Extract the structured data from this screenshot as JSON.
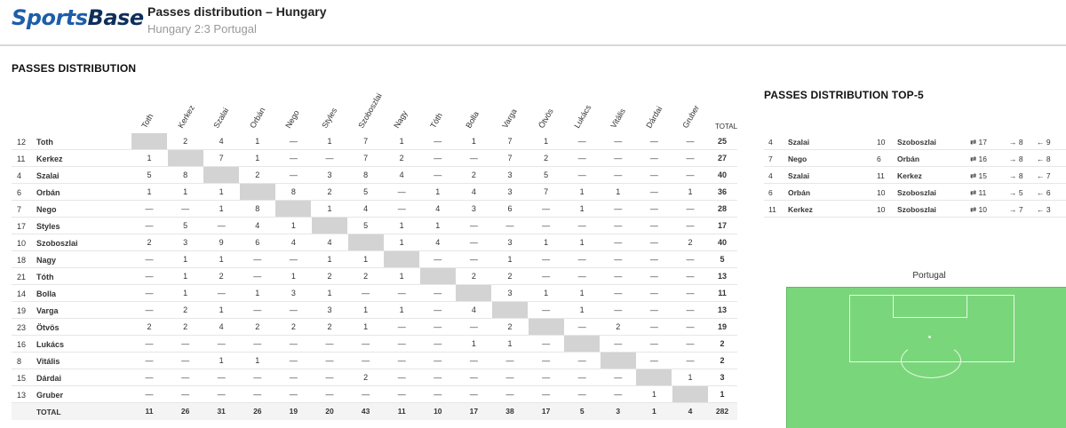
{
  "header": {
    "logo_part1": "Sports",
    "logo_part2": "Base",
    "title": "Passes distribution – Hungary",
    "subtitle": "Hungary 2:3 Portugal"
  },
  "matrix": {
    "title": "PASSES DISTRIBUTION",
    "columns": [
      "Toth",
      "Kerkez",
      "Szalai",
      "Orbán",
      "Nego",
      "Styles",
      "Szoboszlai",
      "Nagy",
      "Tóth",
      "Bolla",
      "Varga",
      "Ötvös",
      "Lukács",
      "Vitális",
      "Dárdai",
      "Gruber"
    ],
    "total_label": "TOTAL",
    "rows": [
      {
        "num": "12",
        "name": "Toth",
        "cells": [
          "",
          "2",
          "4",
          "1",
          "—",
          "1",
          "7",
          "1",
          "—",
          "1",
          "7",
          "1",
          "—",
          "—",
          "—",
          "—"
        ],
        "total": "25"
      },
      {
        "num": "11",
        "name": "Kerkez",
        "cells": [
          "1",
          "",
          "7",
          "1",
          "—",
          "—",
          "7",
          "2",
          "—",
          "—",
          "7",
          "2",
          "—",
          "—",
          "—",
          "—"
        ],
        "total": "27"
      },
      {
        "num": "4",
        "name": "Szalai",
        "cells": [
          "5",
          "8",
          "",
          "2",
          "—",
          "3",
          "8",
          "4",
          "—",
          "2",
          "3",
          "5",
          "—",
          "—",
          "—",
          "—"
        ],
        "total": "40"
      },
      {
        "num": "6",
        "name": "Orbán",
        "cells": [
          "1",
          "1",
          "1",
          "",
          "8",
          "2",
          "5",
          "—",
          "1",
          "4",
          "3",
          "7",
          "1",
          "1",
          "—",
          "1"
        ],
        "total": "36"
      },
      {
        "num": "7",
        "name": "Nego",
        "cells": [
          "—",
          "—",
          "1",
          "8",
          "",
          "1",
          "4",
          "—",
          "4",
          "3",
          "6",
          "—",
          "1",
          "—",
          "—",
          "—"
        ],
        "total": "28"
      },
      {
        "num": "17",
        "name": "Styles",
        "cells": [
          "—",
          "5",
          "—",
          "4",
          "1",
          "",
          "5",
          "1",
          "1",
          "—",
          "—",
          "—",
          "—",
          "—",
          "—",
          "—"
        ],
        "total": "17"
      },
      {
        "num": "10",
        "name": "Szoboszlai",
        "cells": [
          "2",
          "3",
          "9",
          "6",
          "4",
          "4",
          "",
          "1",
          "4",
          "—",
          "3",
          "1",
          "1",
          "—",
          "—",
          "2"
        ],
        "total": "40"
      },
      {
        "num": "18",
        "name": "Nagy",
        "cells": [
          "—",
          "1",
          "1",
          "—",
          "—",
          "1",
          "1",
          "",
          "—",
          "—",
          "1",
          "—",
          "—",
          "—",
          "—",
          "—"
        ],
        "total": "5"
      },
      {
        "num": "21",
        "name": "Tóth",
        "cells": [
          "—",
          "1",
          "2",
          "—",
          "1",
          "2",
          "2",
          "1",
          "",
          "2",
          "2",
          "—",
          "—",
          "—",
          "—",
          "—"
        ],
        "total": "13"
      },
      {
        "num": "14",
        "name": "Bolla",
        "cells": [
          "—",
          "1",
          "—",
          "1",
          "3",
          "1",
          "—",
          "—",
          "—",
          "",
          "3",
          "1",
          "1",
          "—",
          "—",
          "—"
        ],
        "total": "11"
      },
      {
        "num": "19",
        "name": "Varga",
        "cells": [
          "—",
          "2",
          "1",
          "—",
          "—",
          "3",
          "1",
          "1",
          "—",
          "4",
          "",
          "—",
          "1",
          "—",
          "—",
          "—"
        ],
        "total": "13"
      },
      {
        "num": "23",
        "name": "Ötvös",
        "cells": [
          "2",
          "2",
          "4",
          "2",
          "2",
          "2",
          "1",
          "—",
          "—",
          "—",
          "2",
          "",
          "—",
          "2",
          "—",
          "—"
        ],
        "total": "19"
      },
      {
        "num": "16",
        "name": "Lukács",
        "cells": [
          "—",
          "—",
          "—",
          "—",
          "—",
          "—",
          "—",
          "—",
          "—",
          "1",
          "1",
          "—",
          "",
          "—",
          "—",
          "—"
        ],
        "total": "2"
      },
      {
        "num": "8",
        "name": "Vitális",
        "cells": [
          "—",
          "—",
          "1",
          "1",
          "—",
          "—",
          "—",
          "—",
          "—",
          "—",
          "—",
          "—",
          "—",
          "",
          "—",
          "—"
        ],
        "total": "2"
      },
      {
        "num": "15",
        "name": "Dárdai",
        "cells": [
          "—",
          "—",
          "—",
          "—",
          "—",
          "—",
          "2",
          "—",
          "—",
          "—",
          "—",
          "—",
          "—",
          "—",
          "",
          "1"
        ],
        "total": "3"
      },
      {
        "num": "13",
        "name": "Gruber",
        "cells": [
          "—",
          "—",
          "—",
          "—",
          "—",
          "—",
          "—",
          "—",
          "—",
          "—",
          "—",
          "—",
          "—",
          "—",
          "1",
          ""
        ],
        "total": "1"
      }
    ],
    "totals": {
      "label": "TOTAL",
      "cells": [
        "11",
        "26",
        "31",
        "26",
        "19",
        "20",
        "43",
        "11",
        "10",
        "17",
        "38",
        "17",
        "5",
        "3",
        "1",
        "4"
      ],
      "total": "282"
    }
  },
  "top5": {
    "title": "PASSES DISTRIBUTION TOP-5",
    "rows": [
      {
        "num1": "4",
        "name1": "Szalai",
        "num2": "10",
        "name2": "Szoboszlai",
        "both": "⇄ 17",
        "fwd": "→ 8",
        "back": "← 9"
      },
      {
        "num1": "7",
        "name1": "Nego",
        "num2": "6",
        "name2": "Orbán",
        "both": "⇄ 16",
        "fwd": "→ 8",
        "back": "← 8"
      },
      {
        "num1": "4",
        "name1": "Szalai",
        "num2": "11",
        "name2": "Kerkez",
        "both": "⇄ 15",
        "fwd": "→ 8",
        "back": "← 7"
      },
      {
        "num1": "6",
        "name1": "Orbán",
        "num2": "10",
        "name2": "Szoboszlai",
        "both": "⇄ 11",
        "fwd": "→ 5",
        "back": "← 6"
      },
      {
        "num1": "11",
        "name1": "Kerkez",
        "num2": "10",
        "name2": "Szoboszlai",
        "both": "⇄ 10",
        "fwd": "→ 7",
        "back": "← 3"
      }
    ]
  },
  "pitch": {
    "label": "Portugal",
    "color": "#7ad67a"
  }
}
